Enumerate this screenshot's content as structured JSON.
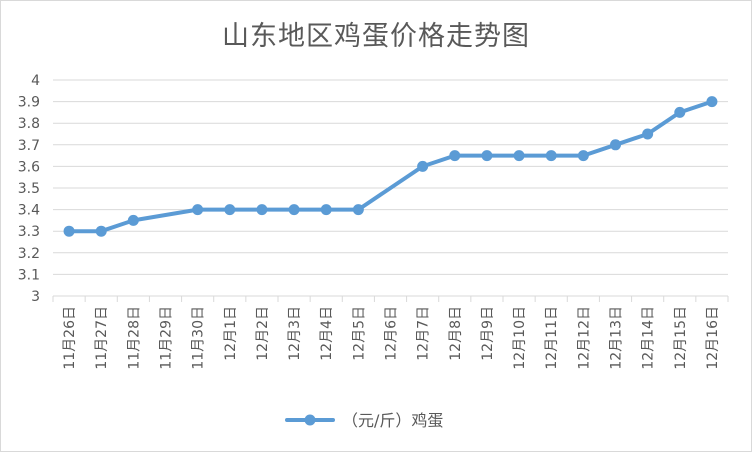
{
  "chart_data": {
    "type": "line",
    "title": "山东地区鸡蛋价格走势图",
    "xlabel": "",
    "ylabel": "",
    "categories": [
      "11月26日",
      "11月27日",
      "11月28日",
      "11月29日",
      "11月30日",
      "12月1日",
      "12月2日",
      "12月3日",
      "12月4日",
      "12月5日",
      "12月6日",
      "12月7日",
      "12月8日",
      "12月9日",
      "12月10日",
      "12月11日",
      "12月12日",
      "12月13日",
      "12月14日",
      "12月15日",
      "12月16日"
    ],
    "series": [
      {
        "name": "（元/斤）鸡蛋",
        "values": [
          3.3,
          3.3,
          3.35,
          null,
          3.4,
          3.4,
          3.4,
          3.4,
          3.4,
          3.4,
          null,
          3.6,
          3.65,
          3.65,
          3.65,
          3.65,
          3.65,
          3.7,
          3.75,
          3.85,
          3.9
        ]
      }
    ],
    "yticks": [
      "3",
      "3.1",
      "3.2",
      "3.3",
      "3.4",
      "3.5",
      "3.6",
      "3.7",
      "3.8",
      "3.9",
      "4"
    ],
    "ylim": [
      3,
      4
    ],
    "grid": true,
    "legend_position": "bottom",
    "line_color": "#5b9bd5",
    "grid_color": "#d9d9d9",
    "text_color": "#595959"
  }
}
